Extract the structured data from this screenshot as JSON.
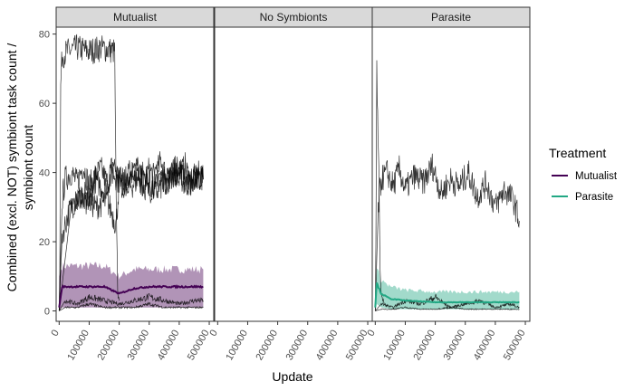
{
  "chart_data": {
    "type": "line",
    "facets": [
      "Mutualist",
      "No Symbionts",
      "Parasite"
    ],
    "xlabel": "Update",
    "ylabel_lines": [
      "Combined (excl. NOT) symbiont task count /",
      "symbiont count"
    ],
    "x_ticks": [
      0,
      100000,
      200000,
      300000,
      400000,
      500000
    ],
    "x_tick_labels": [
      "0",
      "100000",
      "200000",
      "300000",
      "400000",
      "500000"
    ],
    "y_ticks": [
      0,
      20,
      40,
      60,
      80
    ],
    "xlim": [
      -10000,
      515000
    ],
    "ylim": [
      -3,
      82
    ],
    "legend": {
      "title": "Treatment",
      "entries": [
        {
          "label": "Mutualist",
          "color": "#440154"
        },
        {
          "label": "Parasite",
          "color": "#22a884"
        }
      ]
    },
    "series": [
      {
        "facet": "Mutualist",
        "treatment": "Mutualist",
        "role": "mean",
        "color": "#440154",
        "x": [
          0,
          10000,
          50000,
          100000,
          150000,
          200000,
          250000,
          300000,
          350000,
          400000,
          480000
        ],
        "y": [
          1,
          7,
          7,
          7,
          7,
          5,
          6.5,
          7,
          7,
          7,
          7
        ],
        "band_low": [
          0,
          1,
          1,
          1,
          1,
          1,
          1,
          1,
          1,
          1,
          1
        ],
        "band_high": [
          10,
          13,
          13,
          13,
          13,
          10,
          12,
          12,
          12,
          12,
          12
        ]
      },
      {
        "facet": "Parasite",
        "treatment": "Parasite",
        "role": "mean",
        "color": "#22a884",
        "x": [
          0,
          5000,
          20000,
          50000,
          100000,
          200000,
          300000,
          400000,
          480000
        ],
        "y": [
          1,
          8,
          5,
          3.5,
          3,
          2.5,
          2.5,
          2.5,
          2.5
        ],
        "band_low": [
          0,
          2,
          1,
          0.5,
          0.5,
          0.5,
          0.5,
          0.5,
          0.5
        ],
        "band_high": [
          6,
          12,
          9,
          7,
          6,
          5.5,
          5.5,
          5.5,
          5.5
        ]
      }
    ],
    "replicates": [
      {
        "facet": "Mutualist",
        "color": "#000000",
        "x": [
          0,
          2000,
          5000,
          10000,
          30000,
          60000,
          100000,
          140000,
          185000,
          190000,
          195000,
          200000
        ],
        "y": [
          0,
          10,
          65,
          74,
          75,
          76,
          75,
          76,
          75,
          30,
          5,
          3
        ]
      },
      {
        "facet": "Mutualist",
        "color": "#000000",
        "x": [
          0,
          10000,
          20000,
          40000,
          60000,
          80000,
          100000,
          120000,
          140000,
          160000,
          180000,
          200000,
          220000,
          240000,
          260000,
          280000,
          300000,
          320000,
          340000,
          360000,
          380000,
          400000,
          420000,
          440000,
          460000,
          480000
        ],
        "y": [
          0,
          32,
          38,
          40,
          37,
          42,
          36,
          39,
          41,
          37,
          43,
          38,
          35,
          40,
          42,
          36,
          41,
          38,
          44,
          37,
          40,
          39,
          42,
          36,
          40,
          38
        ]
      },
      {
        "facet": "Mutualist",
        "color": "#000000",
        "x": [
          0,
          10000,
          30000,
          60000,
          90000,
          120000,
          150000,
          180000,
          210000,
          240000,
          270000,
          300000,
          330000,
          360000,
          390000,
          420000,
          450000,
          480000
        ],
        "y": [
          0,
          22,
          28,
          33,
          30,
          38,
          35,
          40,
          36,
          41,
          38,
          34,
          40,
          37,
          42,
          36,
          39,
          38
        ]
      },
      {
        "facet": "Mutualist",
        "color": "#000000",
        "x": [
          0,
          40000,
          80000,
          120000,
          160000,
          190000,
          200000,
          240000,
          280000,
          320000,
          360000,
          400000,
          440000,
          480000
        ],
        "y": [
          0,
          30,
          34,
          30,
          32,
          25,
          38,
          36,
          40,
          34,
          38,
          41,
          36,
          39
        ]
      },
      {
        "facet": "Mutualist",
        "color": "#000000",
        "x": [
          0,
          20000,
          60000,
          100000,
          150000,
          200000,
          250000,
          300000,
          350000,
          400000,
          450000,
          480000
        ],
        "y": [
          0,
          3,
          2,
          4,
          3,
          2,
          3,
          4,
          3,
          2,
          3,
          3
        ]
      },
      {
        "facet": "Mutualist",
        "color": "#000000",
        "x": [
          0,
          20000,
          60000,
          100000,
          150000,
          200000,
          250000,
          300000,
          350000,
          400000,
          450000,
          480000
        ],
        "y": [
          0,
          1,
          1,
          2,
          1,
          1,
          1,
          2,
          1,
          1,
          1,
          1
        ]
      },
      {
        "facet": "Parasite",
        "color": "#000000",
        "x": [
          0,
          2000,
          5000,
          8000,
          12000,
          16000,
          20000,
          25000,
          30000
        ],
        "y": [
          0,
          20,
          70,
          55,
          40,
          10,
          5,
          3,
          2
        ]
      },
      {
        "facet": "Parasite",
        "color": "#000000",
        "x": [
          0,
          10000,
          20000,
          40000,
          60000,
          80000,
          100000,
          130000,
          160000,
          190000,
          220000,
          250000,
          280000,
          310000,
          340000,
          370000,
          400000,
          430000,
          460000,
          480000
        ],
        "y": [
          0,
          30,
          38,
          40,
          36,
          41,
          35,
          39,
          37,
          42,
          34,
          38,
          36,
          40,
          33,
          37,
          30,
          35,
          32,
          26
        ]
      },
      {
        "facet": "Parasite",
        "color": "#000000",
        "x": [
          0,
          20000,
          60000,
          100000,
          150000,
          200000,
          250000,
          300000,
          350000,
          400000,
          450000,
          480000
        ],
        "y": [
          0,
          2,
          1,
          3,
          2,
          4,
          1,
          2,
          3,
          1,
          2,
          1
        ]
      },
      {
        "facet": "Parasite",
        "color": "#000000",
        "x": [
          0,
          20000,
          60000,
          100000,
          150000,
          200000,
          250000,
          300000,
          350000,
          400000,
          450000,
          480000
        ],
        "y": [
          0,
          0.5,
          0.5,
          1,
          0.5,
          0.5,
          1,
          0.5,
          0.5,
          0.5,
          0.5,
          0.5
        ]
      }
    ]
  }
}
